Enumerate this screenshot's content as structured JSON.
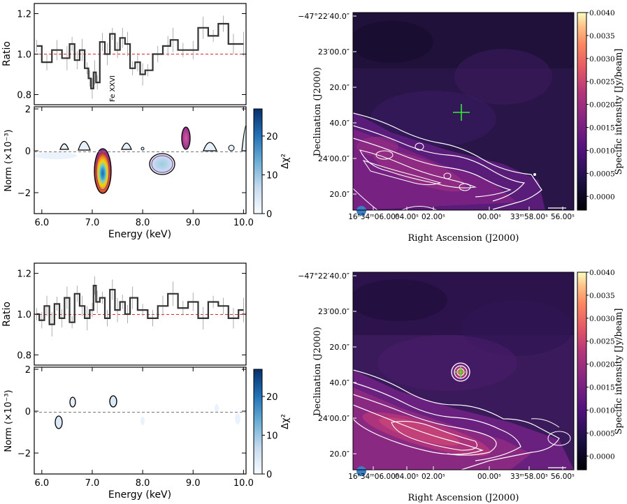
{
  "chart_data": [
    {
      "type": "line",
      "panel": "top-left-ratio",
      "ylabel": "Ratio",
      "xlim": [
        5.85,
        10.05
      ],
      "ylim": [
        0.75,
        1.25
      ],
      "yticks": [
        "0.8",
        "1.0",
        "1.2"
      ],
      "reference_line": 1.0,
      "annotation": "Fe XXVI",
      "x": [
        5.9,
        6.1,
        6.3,
        6.5,
        6.6,
        6.7,
        6.8,
        6.9,
        6.95,
        7.0,
        7.05,
        7.1,
        7.2,
        7.3,
        7.4,
        7.5,
        7.6,
        7.7,
        7.8,
        7.9,
        8.0,
        8.1,
        8.3,
        8.5,
        8.6,
        8.8,
        9.0,
        9.2,
        9.4,
        9.6,
        9.8,
        10.0
      ],
      "values": [
        1.04,
        0.96,
        1.02,
        0.98,
        1.05,
        0.97,
        1.02,
        0.93,
        0.88,
        0.83,
        0.91,
        0.86,
        1.06,
        1.0,
        1.1,
        1.02,
        1.08,
        1.05,
        0.93,
        0.96,
        0.9,
        0.92,
        1.0,
        1.04,
        1.07,
        1.02,
        1.02,
        1.13,
        1.09,
        1.15,
        1.05,
        1.05
      ]
    },
    {
      "type": "heatmap",
      "panel": "top-left-norm",
      "xlabel": "Energy (keV)",
      "ylabel": "Norm (×10⁻³)",
      "xlim": [
        5.85,
        10.05
      ],
      "ylim": [
        -3,
        2.1
      ],
      "xticks": [
        "6.0",
        "7.0",
        "8.0",
        "9.0",
        "10.0"
      ],
      "yticks": [
        "2",
        "0",
        "−2"
      ],
      "colorbar_label": "Δχ²",
      "colorbar_ticks": [
        "0",
        "10",
        "20"
      ],
      "colorbar_range": [
        0,
        27
      ],
      "features": [
        {
          "x": 7.0,
          "y": -0.9,
          "peak": 27
        },
        {
          "x": 8.2,
          "y": -0.55,
          "peak": 8
        },
        {
          "x": 8.65,
          "y": 0.6,
          "peak": 6
        },
        {
          "x": 6.35,
          "y": 0.25,
          "peak": 1
        },
        {
          "x": 6.7,
          "y": 0.35,
          "peak": 1
        },
        {
          "x": 7.25,
          "y": 0.4,
          "peak": 1
        },
        {
          "x": 9.2,
          "y": 0.35,
          "peak": 1
        },
        {
          "x": 9.5,
          "y": 0.25,
          "peak": 1
        },
        {
          "x": 10.0,
          "y": 0.5,
          "peak": 1
        }
      ]
    },
    {
      "type": "line",
      "panel": "bottom-left-ratio",
      "ylabel": "Ratio",
      "xlim": [
        5.85,
        10.05
      ],
      "ylim": [
        0.75,
        1.25
      ],
      "yticks": [
        "0.8",
        "1.0",
        "1.2"
      ],
      "reference_line": 1.0,
      "x": [
        5.9,
        6.0,
        6.1,
        6.2,
        6.3,
        6.4,
        6.5,
        6.6,
        6.7,
        6.8,
        6.9,
        7.0,
        7.05,
        7.1,
        7.2,
        7.3,
        7.4,
        7.5,
        7.6,
        7.7,
        7.8,
        8.0,
        8.2,
        8.4,
        8.6,
        8.8,
        9.0,
        9.2,
        9.4,
        9.6,
        9.8,
        10.0
      ],
      "values": [
        1.0,
        0.97,
        1.04,
        0.95,
        1.05,
        0.98,
        1.08,
        0.96,
        1.1,
        1.04,
        0.98,
        1.02,
        1.14,
        1.06,
        1.08,
        0.98,
        1.12,
        1.02,
        1.06,
        1.0,
        1.08,
        1.02,
        0.98,
        1.04,
        1.1,
        1.03,
        1.06,
        0.98,
        1.06,
        1.04,
        0.98,
        1.02
      ]
    },
    {
      "type": "heatmap",
      "panel": "bottom-left-norm",
      "xlabel": "Energy (keV)",
      "ylabel": "Norm (×10⁻³)",
      "xlim": [
        5.85,
        10.05
      ],
      "ylim": [
        -3,
        2.1
      ],
      "xticks": [
        "6.0",
        "7.0",
        "8.0",
        "9.0",
        "10.0"
      ],
      "yticks": [
        "2",
        "0",
        "−2"
      ],
      "colorbar_label": "Δχ²",
      "colorbar_ticks": [
        "0",
        "10",
        "20"
      ],
      "colorbar_range": [
        0,
        27
      ],
      "features": [
        {
          "x": 6.27,
          "y": -0.4,
          "peak": 3
        },
        {
          "x": 6.5,
          "y": 0.5,
          "peak": 2
        },
        {
          "x": 7.2,
          "y": 0.55,
          "peak": 3
        }
      ]
    },
    {
      "type": "heatmap",
      "panel": "top-right-image",
      "xlabel": "Right Ascension (J2000)",
      "ylabel": "Declination (J2000)",
      "colorbar_label": "Specific intensity [Jy/beam]",
      "colorbar_ticks": [
        "0.0040",
        "0.0035",
        "0.0030",
        "0.0025",
        "0.0020",
        "0.0015",
        "0.0010",
        "0.0005",
        "0.0000"
      ],
      "colorbar_range": [
        -0.0003,
        0.004
      ],
      "xticks": [
        "16ʰ34ᵐ06.00ˢ",
        "04.00ˢ",
        "02.00ˢ",
        "00.00ˢ",
        "33ᵐ58.00ˢ",
        "56.00ˢ"
      ],
      "yticks": [
        "−47°22′40.0″",
        "23′00.0″",
        "20.0″",
        "40.0″",
        "24′00.0″",
        "20.0″"
      ],
      "scalebar": "10″",
      "marker": "cross"
    },
    {
      "type": "heatmap",
      "panel": "bottom-right-image",
      "xlabel": "Right Ascension (J2000)",
      "ylabel": "Declination (J2000)",
      "colorbar_label": "Specific intensity [Jy/beam]",
      "colorbar_ticks": [
        "0.0040",
        "0.0035",
        "0.0030",
        "0.0025",
        "0.0020",
        "0.0015",
        "0.0010",
        "0.0005",
        "0.0000"
      ],
      "colorbar_range": [
        -0.0003,
        0.004
      ],
      "xticks": [
        "16ʰ34ᵐ06.00ˢ",
        "04.00ˢ",
        "02.00ˢ",
        "00.00ˢ",
        "33ᵐ58.00ˢ",
        "56.00ˢ"
      ],
      "yticks": [
        "−47°22′40.0″",
        "23′00.0″",
        "20.0″",
        "40.0″",
        "24′00.0″",
        "20.0″"
      ],
      "scalebar": "10″",
      "marker": "cross-with-source"
    }
  ],
  "colors": {
    "data_line": "#333333",
    "error_bar": "#9a9a9a",
    "ratio_ref_line": "#e0262a",
    "contour_white": "#ffffff",
    "cross_green": "#33ee33",
    "beam": "#3a7fc6"
  }
}
